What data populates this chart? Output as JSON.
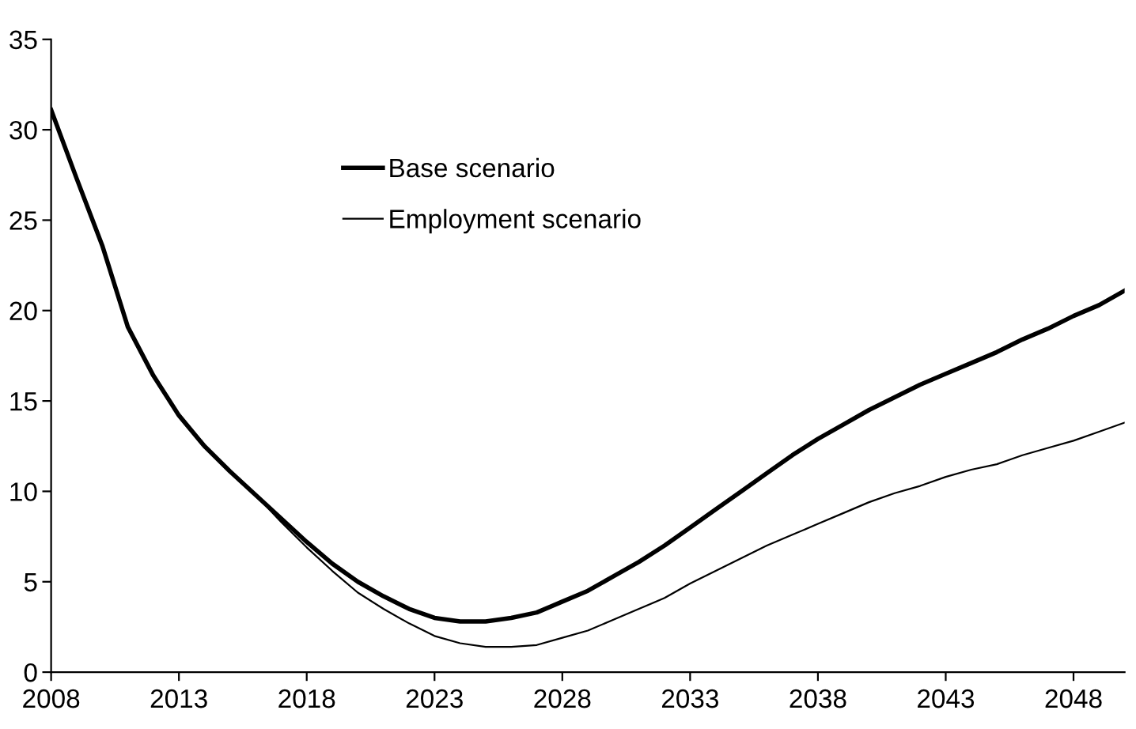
{
  "chart_data": {
    "type": "line",
    "x": [
      2008,
      2009,
      2010,
      2011,
      2012,
      2013,
      2014,
      2015,
      2016,
      2017,
      2018,
      2019,
      2020,
      2021,
      2022,
      2023,
      2024,
      2025,
      2026,
      2027,
      2028,
      2029,
      2030,
      2031,
      2032,
      2033,
      2034,
      2035,
      2036,
      2037,
      2038,
      2039,
      2040,
      2041,
      2042,
      2043,
      2044,
      2045,
      2046,
      2047,
      2048,
      2049,
      2050
    ],
    "series": [
      {
        "name": "Base scenario",
        "color": "#000000",
        "values": [
          31.1,
          27.3,
          23.6,
          19.1,
          16.4,
          14.2,
          12.5,
          11.1,
          9.8,
          8.5,
          7.2,
          6.0,
          5.0,
          4.2,
          3.5,
          3.0,
          2.8,
          2.8,
          3.0,
          3.3,
          3.9,
          4.5,
          5.3,
          6.1,
          7.0,
          8.0,
          9.0,
          10.0,
          11.0,
          12.0,
          12.9,
          13.7,
          14.5,
          15.2,
          15.9,
          16.5,
          17.1,
          17.7,
          18.4,
          19.0,
          19.7,
          20.3,
          21.1
        ]
      },
      {
        "name": "Employment scenario",
        "color": "#000000",
        "values": [
          31.1,
          27.3,
          23.6,
          19.1,
          16.4,
          14.2,
          12.5,
          11.1,
          9.8,
          8.3,
          6.9,
          5.6,
          4.4,
          3.5,
          2.7,
          2.0,
          1.6,
          1.4,
          1.4,
          1.5,
          1.9,
          2.3,
          2.9,
          3.5,
          4.1,
          4.9,
          5.6,
          6.3,
          7.0,
          7.6,
          8.2,
          8.8,
          9.4,
          9.9,
          10.3,
          10.8,
          11.2,
          11.5,
          12.0,
          12.4,
          12.8,
          13.3,
          13.8
        ]
      }
    ],
    "xlim": [
      2008,
      2050
    ],
    "xticks": [
      2008,
      2013,
      2018,
      2023,
      2028,
      2033,
      2038,
      2043,
      2048
    ],
    "ylim": [
      0,
      35
    ],
    "yticks": [
      0,
      5,
      10,
      15,
      20,
      25,
      30,
      35
    ],
    "grid": false,
    "legend": "top left",
    "marker": "none",
    "line_style": "solid"
  }
}
